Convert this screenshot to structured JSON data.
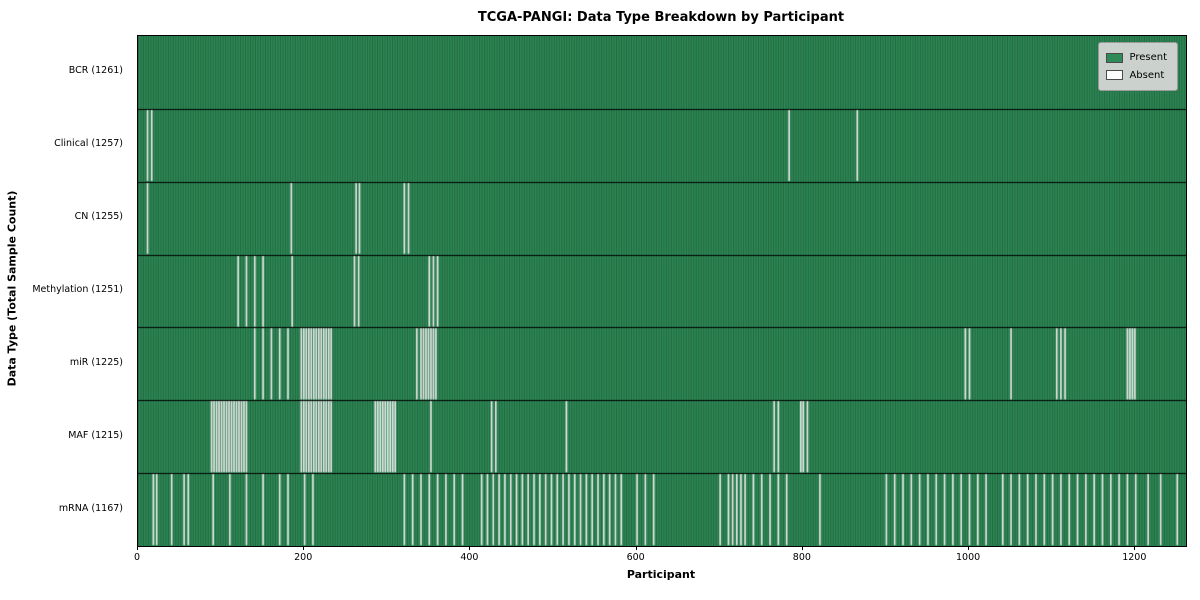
{
  "title": "TCGA-PANGI: Data Type Breakdown by Participant",
  "xlabel": "Participant",
  "ylabel": "Data Type (Total Sample Count)",
  "legend": {
    "present_label": "Present",
    "absent_label": "Absent"
  },
  "chart_data": {
    "type": "heatmap",
    "n_participants": 1261,
    "x_ticks": [
      0,
      200,
      400,
      600,
      800,
      1000,
      1200
    ],
    "colors": {
      "present": "#2e8b57",
      "absent": "#ededed",
      "edge_shade": "rgba(0,0,0,0.28)",
      "row_separator": "#000000"
    },
    "legend_position": "upper right",
    "rows": [
      {
        "label": "BCR (1261)",
        "name": "BCR",
        "present_count": 1261,
        "absent_indices": []
      },
      {
        "label": "Clinical (1257)",
        "name": "Clinical",
        "present_count": 1257,
        "absent_indices": [
          11,
          16,
          783,
          865
        ]
      },
      {
        "label": "CN (1255)",
        "name": "CN",
        "present_count": 1255,
        "absent_indices": [
          11,
          184,
          262,
          266,
          320,
          325
        ]
      },
      {
        "label": "Methylation (1251)",
        "name": "Methylation",
        "present_count": 1251,
        "absent_indices": [
          120,
          130,
          140,
          150,
          185,
          260,
          265,
          350,
          355,
          360
        ]
      },
      {
        "label": "miR (1225)",
        "name": "miR",
        "present_count": 1225,
        "absent_indices": [
          140,
          150,
          160,
          170,
          180,
          196,
          199,
          202,
          205,
          208,
          211,
          214,
          217,
          220,
          223,
          226,
          229,
          232,
          335,
          340,
          343,
          346,
          349,
          352,
          355,
          358,
          995,
          1000,
          1050,
          1105,
          1110,
          1115,
          1190,
          1193,
          1196,
          1199
        ]
      },
      {
        "label": "MAF (1215)",
        "name": "MAF",
        "present_count": 1215,
        "absent_indices": [
          88,
          91,
          94,
          97,
          100,
          103,
          106,
          109,
          112,
          115,
          118,
          121,
          124,
          127,
          130,
          196,
          199,
          202,
          205,
          208,
          211,
          214,
          217,
          220,
          223,
          226,
          229,
          232,
          285,
          288,
          291,
          294,
          297,
          300,
          303,
          306,
          309,
          352,
          425,
          430,
          515,
          765,
          770,
          797,
          800,
          805
        ]
      },
      {
        "label": "mRNA (1167)",
        "name": "mRNA",
        "present_count": 1167,
        "absent_indices": [
          18,
          22,
          40,
          55,
          60,
          90,
          110,
          130,
          150,
          170,
          180,
          200,
          210,
          320,
          330,
          340,
          350,
          360,
          370,
          380,
          390,
          413,
          420,
          427,
          434,
          441,
          448,
          455,
          462,
          469,
          476,
          483,
          490,
          497,
          504,
          511,
          518,
          525,
          532,
          539,
          546,
          553,
          560,
          567,
          574,
          581,
          600,
          610,
          620,
          700,
          710,
          715,
          720,
          725,
          730,
          740,
          750,
          760,
          770,
          780,
          820,
          900,
          910,
          920,
          930,
          940,
          950,
          960,
          970,
          980,
          990,
          1000,
          1010,
          1020,
          1040,
          1050,
          1060,
          1070,
          1080,
          1090,
          1100,
          1110,
          1120,
          1130,
          1140,
          1150,
          1160,
          1170,
          1180,
          1190,
          1200,
          1215,
          1230,
          1250
        ]
      }
    ]
  }
}
